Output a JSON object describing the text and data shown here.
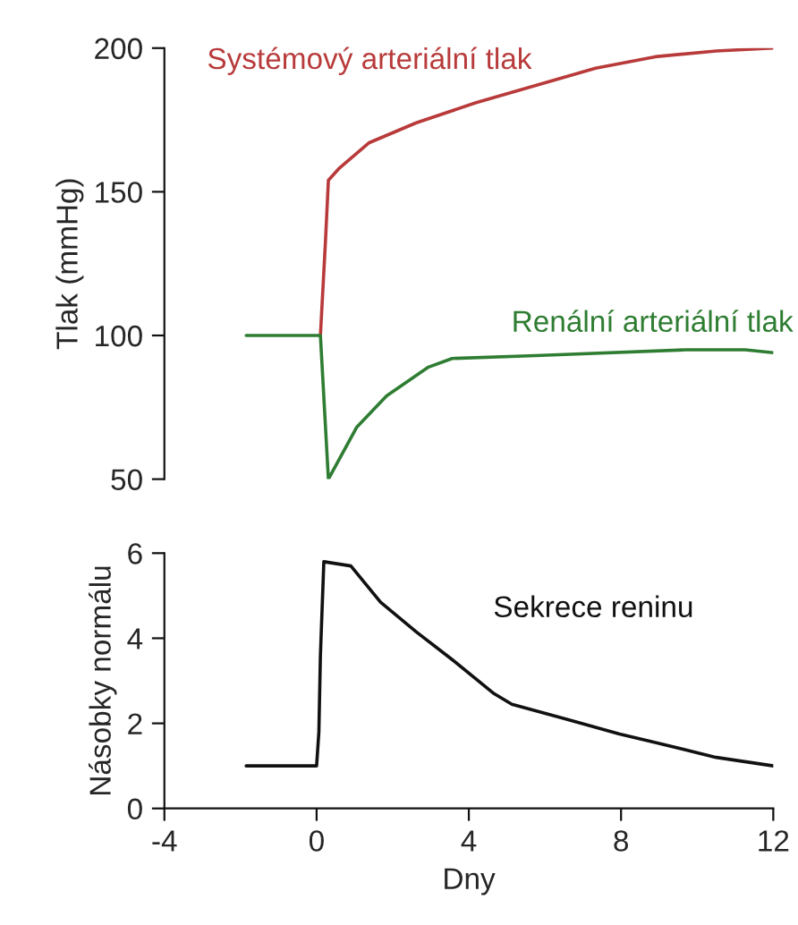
{
  "chart_data": [
    {
      "type": "line",
      "ylabel": "Tlak (mmHg)",
      "xlim": [
        -4,
        12
      ],
      "ylim": [
        50,
        200
      ],
      "yticks": [
        50,
        100,
        150,
        200
      ],
      "tick_labels": "y",
      "grid": false,
      "legend": false,
      "series": [
        {
          "name": "Systémový arteriální tlak",
          "color": "#b83a3a",
          "x": [
            0.1,
            0.23,
            0.31,
            0.58,
            1.37,
            2.62,
            4.19,
            5.76,
            7.33,
            8.9,
            10.5,
            12
          ],
          "values": [
            100,
            132,
            154,
            158,
            167,
            174,
            181,
            187,
            193,
            197,
            199,
            200
          ]
        },
        {
          "name": "Renální arteriální tlak",
          "color": "#2e7d32",
          "x": [
            -1.85,
            0.1,
            0.31,
            1.05,
            1.84,
            2.94,
            3.56,
            5.76,
            9.69,
            11.26,
            12
          ],
          "values": [
            100,
            100,
            50,
            68,
            79,
            89,
            92,
            93,
            95,
            95,
            94
          ]
        }
      ]
    },
    {
      "type": "line",
      "xlabel": "Dny",
      "ylabel": "Násobky normálu",
      "xlim": [
        -4,
        12
      ],
      "xticks": [
        -4,
        0,
        4,
        8,
        12
      ],
      "ylim": [
        0,
        6
      ],
      "yticks": [
        0,
        2,
        4,
        6
      ],
      "grid": false,
      "legend": false,
      "series": [
        {
          "name": "Sekrece reninu",
          "color": "#111111",
          "x": [
            -1.85,
            0,
            0.06,
            0.1,
            0.19,
            0.9,
            1.68,
            2.62,
            3.56,
            4.66,
            5.13,
            6.55,
            7.96,
            8.9,
            10.5,
            12
          ],
          "values": [
            1,
            1,
            1.8,
            3.6,
            5.8,
            5.7,
            4.85,
            4.15,
            3.5,
            2.7,
            2.45,
            2.1,
            1.75,
            1.55,
            1.2,
            1
          ]
        }
      ]
    }
  ]
}
